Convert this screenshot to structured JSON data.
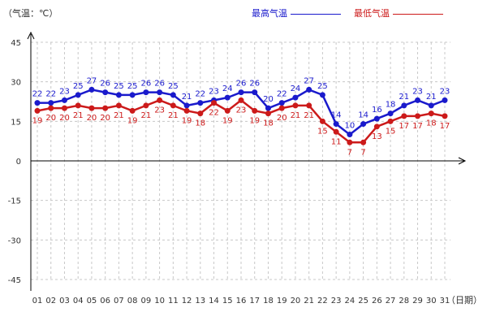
{
  "unit_label": "（气温：℃）",
  "legend": {
    "high_label": "最高气温",
    "low_label": "最低气温"
  },
  "chart_data": {
    "type": "line",
    "xlabel": "（日期）",
    "ylabel": "",
    "ylim": [
      -45,
      45
    ],
    "yticks": [
      -45,
      -30,
      -15,
      0,
      15,
      30,
      45
    ],
    "grid": true,
    "legend_position": "top-right",
    "categories": [
      "01",
      "02",
      "03",
      "04",
      "05",
      "06",
      "07",
      "08",
      "09",
      "10",
      "11",
      "12",
      "13",
      "14",
      "15",
      "16",
      "17",
      "18",
      "19",
      "20",
      "21",
      "22",
      "23",
      "24",
      "25",
      "26",
      "27",
      "28",
      "29",
      "30",
      "31"
    ],
    "series": [
      {
        "name": "最高气温",
        "color": "#1a1acc",
        "values": [
          22,
          22,
          23,
          25,
          27,
          26,
          25,
          25,
          26,
          26,
          25,
          21,
          22,
          23,
          24,
          26,
          26,
          20,
          22,
          24,
          27,
          25,
          14,
          10,
          14,
          16,
          18,
          21,
          23,
          21,
          23
        ]
      },
      {
        "name": "最低气温",
        "color": "#cc1a1a",
        "values": [
          19,
          20,
          20,
          21,
          20,
          20,
          21,
          19,
          21,
          23,
          21,
          19,
          18,
          22,
          19,
          23,
          19,
          18,
          20,
          21,
          21,
          15,
          11,
          7,
          7,
          13,
          15,
          17,
          17,
          18,
          17
        ]
      }
    ]
  }
}
